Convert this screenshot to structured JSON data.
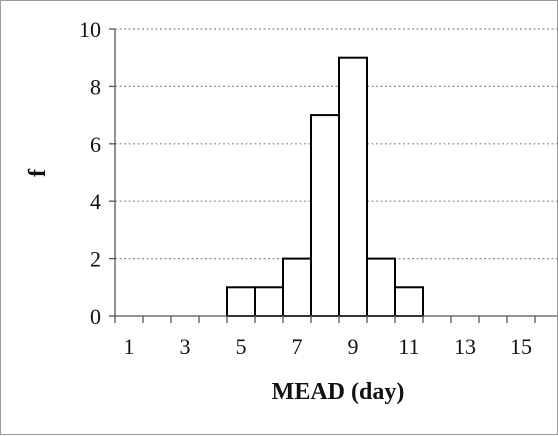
{
  "chart_data": {
    "type": "bar",
    "xlabel": "MEAD (day)",
    "ylabel": "f",
    "xlim": [
      0,
      16
    ],
    "ylim": [
      0,
      10
    ],
    "x_tick_labels": [
      "1",
      "3",
      "5",
      "7",
      "9",
      "11",
      "13",
      "15"
    ],
    "y_tick_labels": [
      "0",
      "2",
      "4",
      "6",
      "8",
      "10"
    ],
    "grid": "horizontal dotted",
    "bars": [
      {
        "x": 5,
        "value": 1
      },
      {
        "x": 6,
        "value": 1
      },
      {
        "x": 7,
        "value": 2
      },
      {
        "x": 8,
        "value": 7
      },
      {
        "x": 9,
        "value": 9
      },
      {
        "x": 10,
        "value": 2
      },
      {
        "x": 11,
        "value": 1
      }
    ],
    "colors": {
      "bar_fill": "#ffffff",
      "bar_edge": "#000000"
    }
  }
}
